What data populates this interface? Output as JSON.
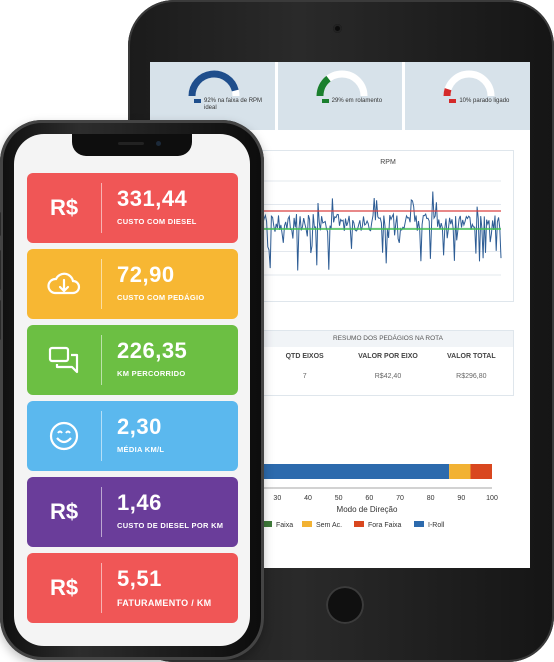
{
  "tablet": {
    "gauges": [
      {
        "label": "92% na faixa de RPM ideal",
        "value": 92,
        "color": "#1f4e8c"
      },
      {
        "label": "29% em rolamento",
        "value": 29,
        "color": "#1a7f2e"
      },
      {
        "label": "10% parado ligado",
        "value": 10,
        "color": "#d42a2a"
      }
    ],
    "rpm_chart": {
      "title": "RPM",
      "series_color": "#2e5d95",
      "line_colors": [
        "#d94040",
        "#3fbf4f"
      ]
    },
    "toll_table": {
      "title": "RESUMO DOS PEDÁGIOS NA ROTA",
      "headers": [
        "QTD EIXOS",
        "VALOR POR EIXO",
        "VALOR TOTAL"
      ],
      "rows": [
        [
          "7",
          "R$42,40",
          "R$296,80"
        ]
      ]
    },
    "mode_chart": {
      "xlabel": "Modo de Direção",
      "ticks": [
        "30",
        "40",
        "50",
        "60",
        "70",
        "80",
        "90",
        "100"
      ],
      "segments": [
        {
          "name": "I-Roll",
          "value": 86,
          "color": "#2c6aad"
        },
        {
          "name": "Sem Ac.",
          "value": 7,
          "color": "#f2b233"
        },
        {
          "name": "Fora Faixa",
          "value": 7,
          "color": "#d9471f"
        }
      ],
      "legend": [
        "Faixa",
        "Sem Ac.",
        "Fora Faixa",
        "I-Roll"
      ],
      "legend_colors": [
        "#3f7a3a",
        "#f2b233",
        "#d9471f",
        "#2c6aad"
      ]
    }
  },
  "phone": {
    "tiles": [
      {
        "icon": "R$",
        "value": "331,44",
        "label": "CUSTO COM DIESEL",
        "color": "#f05656"
      },
      {
        "icon": "cloud-download-icon",
        "value": "72,90",
        "label": "CUSTO COM PEDÁGIO",
        "color": "#f7b733"
      },
      {
        "icon": "chat-icon",
        "value": "226,35",
        "label": "KM PERCORRIDO",
        "color": "#6cbf43"
      },
      {
        "icon": "smiley-icon",
        "value": "2,30",
        "label": "MÉDIA KM/L",
        "color": "#5bb8ee"
      },
      {
        "icon": "R$",
        "value": "1,46",
        "label": "CUSTO DE DIESEL POR KM",
        "color": "#6a3d9a"
      },
      {
        "icon": "R$",
        "value": "5,51",
        "label": "FATURAMENTO / KM",
        "color": "#f05656"
      }
    ]
  }
}
